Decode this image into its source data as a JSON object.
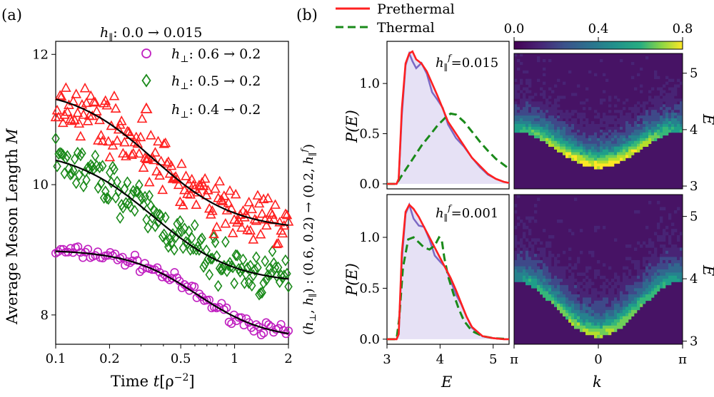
{
  "panels": {
    "a": "(a)",
    "b": "(b)"
  },
  "chart_data": [
    {
      "type": "scatter",
      "panel_label": "(a)",
      "xlabel": "Time",
      "xlabel_italic": "t",
      "xlabel_unit": "[ρ",
      "xlabel_unit_exp": "−2",
      "xlabel_unit_close": "]",
      "ylabel": "Average Meson Length",
      "ylabel_italic": "M",
      "xscale": "log",
      "xlim": [
        0.1,
        2
      ],
      "ylim": [
        7.55,
        12.2
      ],
      "xticks": [
        "0.1",
        "0.2",
        "0.5",
        "1",
        "2"
      ],
      "xtick_values": [
        0.1,
        0.2,
        0.5,
        1,
        2
      ],
      "yticks": [
        "8",
        "10",
        "12"
      ],
      "ytick_values": [
        8,
        10,
        12
      ],
      "legend_title": {
        "prefix": "h",
        "sub": "∥",
        "text": ":  0.0 → 0.015"
      },
      "series": [
        {
          "name": "h⊥: 0.6 → 0.2",
          "name_sym": "h",
          "name_sub": "⊥",
          "name_text": ": 0.6 → 0.2",
          "marker": "circle",
          "color": "#c020c0",
          "fit": {
            "start": 9.0,
            "end": 7.62,
            "t0": 0.62,
            "w": 1.12
          },
          "scatter": 0.05,
          "n": 95
        },
        {
          "name": "h⊥: 0.5 → 0.2",
          "name_sym": "h",
          "name_sub": "⊥",
          "name_text": ": 0.5 → 0.2",
          "marker": "diamond",
          "color": "#1a8a1a",
          "fit": {
            "start": 10.55,
            "end": 8.48,
            "t0": 0.35,
            "w": 0.95
          },
          "scatter": 0.17,
          "n": 160
        },
        {
          "name": "h⊥: 0.4 → 0.2",
          "name_sym": "h",
          "name_sub": "⊥",
          "name_text": ": 0.4 → 0.2",
          "marker": "triangle",
          "color": "#ff2020",
          "fit": {
            "start": 11.5,
            "end": 9.3,
            "t0": 0.35,
            "w": 0.95
          },
          "scatter": 0.2,
          "n": 160
        }
      ]
    },
    {
      "type": "line",
      "panel_label": "(b)",
      "xlabel": "E",
      "ylabel": "P(E)",
      "xlim": [
        3,
        5.3
      ],
      "ylim": [
        -0.05,
        1.42
      ],
      "xticks": [
        "3",
        "4",
        "5"
      ],
      "xtick_values": [
        3,
        4,
        5
      ],
      "yticks": [
        "0.0",
        "0.5",
        "1.0"
      ],
      "ytick_values": [
        0.0,
        0.5,
        1.0
      ],
      "shared_ylabel": "(h⊥, h∥) : (0.6, 0.2) → (0.2, h∥f)",
      "legend": [
        {
          "name": "Prethermal",
          "color": "#ff2020",
          "style": "solid"
        },
        {
          "name": "Thermal",
          "color": "#1a8a1a",
          "style": "dashed"
        }
      ],
      "subplots": [
        {
          "annotation": "h∥f = 0.015",
          "ann_value": "0.015",
          "prethermal": {
            "x": [
              3.0,
              3.18,
              3.22,
              3.28,
              3.35,
              3.42,
              3.48,
              3.55,
              3.65,
              3.75,
              3.85,
              3.95,
              4.05,
              4.15,
              4.3,
              4.45,
              4.6,
              4.75,
              4.9,
              5.05,
              5.2,
              5.3
            ],
            "y": [
              0,
              0,
              0.05,
              0.75,
              1.2,
              1.3,
              1.32,
              1.24,
              1.2,
              1.12,
              1.0,
              0.88,
              0.75,
              0.62,
              0.5,
              0.38,
              0.26,
              0.18,
              0.1,
              0.05,
              0.02,
              0.01
            ]
          },
          "thermal": {
            "x": [
              3.0,
              3.18,
              3.25,
              3.35,
              3.5,
              3.65,
              3.8,
              3.95,
              4.1,
              4.2,
              4.3,
              4.45,
              4.6,
              4.75,
              4.9,
              5.05,
              5.2,
              5.3
            ],
            "y": [
              0,
              0,
              0.06,
              0.14,
              0.26,
              0.38,
              0.48,
              0.58,
              0.66,
              0.7,
              0.69,
              0.62,
              0.52,
              0.42,
              0.33,
              0.25,
              0.19,
              0.15
            ]
          }
        },
        {
          "annotation": "h∥f = 0.001",
          "ann_value": "0.001",
          "prethermal": {
            "x": [
              3.0,
              3.18,
              3.22,
              3.28,
              3.35,
              3.42,
              3.5,
              3.6,
              3.7,
              3.8,
              3.9,
              4.0,
              4.1,
              4.2,
              4.3,
              4.4,
              4.5,
              4.6,
              4.8,
              5.0,
              5.2,
              5.3
            ],
            "y": [
              0,
              0,
              0.05,
              0.85,
              1.25,
              1.32,
              1.28,
              1.2,
              1.1,
              1.0,
              0.9,
              0.8,
              0.7,
              0.6,
              0.48,
              0.35,
              0.22,
              0.12,
              0.03,
              0.01,
              0.0,
              0.0
            ]
          },
          "thermal": {
            "x": [
              3.0,
              3.18,
              3.23,
              3.3,
              3.4,
              3.5,
              3.6,
              3.7,
              3.8,
              3.9,
              3.98,
              4.03,
              4.08,
              4.15,
              4.25,
              4.35,
              4.45,
              4.6,
              4.8,
              5.0,
              5.3
            ],
            "y": [
              0,
              0,
              0.2,
              0.7,
              0.98,
              1.0,
              0.95,
              0.9,
              0.88,
              0.92,
              1.0,
              0.98,
              0.8,
              0.62,
              0.45,
              0.3,
              0.18,
              0.08,
              0.03,
              0.01,
              0.0
            ]
          }
        }
      ]
    },
    {
      "type": "heatmap",
      "xlabel": "k",
      "ylabel": "E",
      "xticks": [
        "π",
        "0",
        "π"
      ],
      "yticks": [
        "3",
        "4",
        "5"
      ],
      "ytick_values": [
        3,
        4,
        5
      ],
      "ylim": [
        2.95,
        5.35
      ],
      "colorbar": {
        "ticks": [
          "0.0",
          "0.4",
          "0.8"
        ],
        "range": [
          0,
          0.8
        ],
        "colormap": "viridis"
      },
      "maps": [
        {
          "band_center": 3.4,
          "band_edge": 4.05,
          "intensity": 0.9
        },
        {
          "band_center": 3.15,
          "band_edge": 4.05,
          "intensity": 0.75
        }
      ]
    }
  ]
}
